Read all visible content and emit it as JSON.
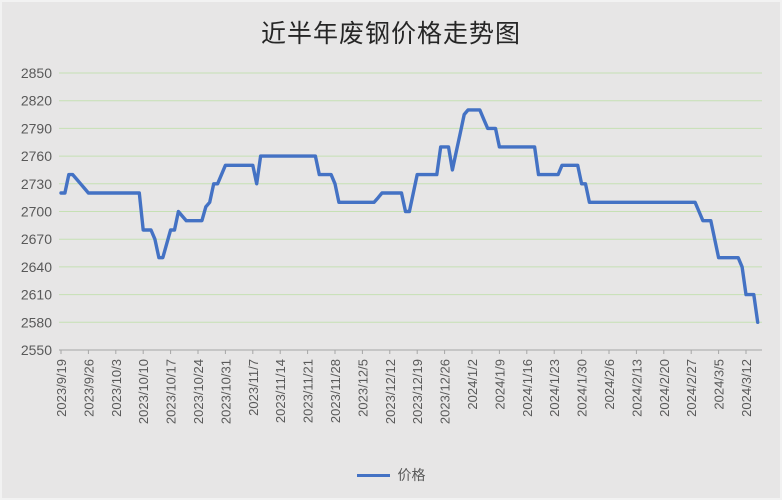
{
  "title": "近半年废钢价格走势图",
  "legend": {
    "label": "价格",
    "color": "#4472C4"
  },
  "colors": {
    "background": "#E7E6E6",
    "border": "#F2F2F2",
    "gridline": "#C6E0B4",
    "series_line": "#4472C4",
    "axis_text": "#595959",
    "title_text": "#262626",
    "axis_line": "#A6A6A6"
  },
  "chart_data": {
    "type": "line",
    "title": "近半年废钢价格走势图",
    "x_start_date": "2023/9/19",
    "x_frequency": "daily",
    "x_tick_interval_points": 7,
    "x_tick_labels": [
      "2023/9/19",
      "2023/9/26",
      "2023/10/3",
      "2023/10/10",
      "2023/10/17",
      "2023/10/24",
      "2023/10/31",
      "2023/11/7",
      "2023/11/14",
      "2023/11/21",
      "2023/11/28",
      "2023/12/5",
      "2023/12/12",
      "2023/12/19",
      "2023/12/26",
      "2024/1/2",
      "2024/1/9",
      "2024/1/16",
      "2024/1/23",
      "2024/1/30",
      "2024/2/6",
      "2024/2/13",
      "2024/2/20",
      "2024/2/27",
      "2024/3/5",
      "2024/3/12"
    ],
    "ylim": [
      2550,
      2850
    ],
    "y_ticks": [
      2550,
      2580,
      2610,
      2640,
      2670,
      2700,
      2730,
      2760,
      2790,
      2820,
      2850
    ],
    "grid": true,
    "legend_position": "bottom",
    "series": [
      {
        "name": "价格",
        "color": "#4472C4",
        "values": [
          2720,
          2720,
          2740,
          2740,
          2735,
          2730,
          2725,
          2720,
          2720,
          2720,
          2720,
          2720,
          2720,
          2720,
          2720,
          2720,
          2720,
          2720,
          2720,
          2720,
          2720,
          2680,
          2680,
          2680,
          2670,
          2650,
          2650,
          2665,
          2680,
          2680,
          2700,
          2695,
          2690,
          2690,
          2690,
          2690,
          2690,
          2705,
          2710,
          2730,
          2730,
          2740,
          2750,
          2750,
          2750,
          2750,
          2750,
          2750,
          2750,
          2750,
          2730,
          2760,
          2760,
          2760,
          2760,
          2760,
          2760,
          2760,
          2760,
          2760,
          2760,
          2760,
          2760,
          2760,
          2760,
          2760,
          2740,
          2740,
          2740,
          2740,
          2730,
          2710,
          2710,
          2710,
          2710,
          2710,
          2710,
          2710,
          2710,
          2710,
          2710,
          2715,
          2720,
          2720,
          2720,
          2720,
          2720,
          2720,
          2700,
          2700,
          2720,
          2740,
          2740,
          2740,
          2740,
          2740,
          2740,
          2770,
          2770,
          2770,
          2745,
          2765,
          2785,
          2805,
          2810,
          2810,
          2810,
          2810,
          2800,
          2790,
          2790,
          2790,
          2770,
          2770,
          2770,
          2770,
          2770,
          2770,
          2770,
          2770,
          2770,
          2770,
          2740,
          2740,
          2740,
          2740,
          2740,
          2740,
          2750,
          2750,
          2750,
          2750,
          2750,
          2730,
          2730,
          2710,
          2710,
          2710,
          2710,
          2710,
          2710,
          2710,
          2710,
          2710,
          2710,
          2710,
          2710,
          2710,
          2710,
          2710,
          2710,
          2710,
          2710,
          2710,
          2710,
          2710,
          2710,
          2710,
          2710,
          2710,
          2710,
          2710,
          2710,
          2700,
          2690,
          2690,
          2690,
          2670,
          2650,
          2650,
          2650,
          2650,
          2650,
          2650,
          2640,
          2610,
          2610,
          2610,
          2580
        ]
      }
    ]
  }
}
